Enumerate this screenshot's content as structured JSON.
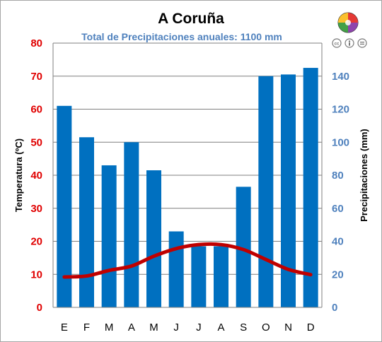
{
  "chart_data": {
    "type": "bar+line",
    "title": "A Coruña",
    "subtitle": "Total de Precipitaciones anuales: 1100 mm",
    "categories": [
      "E",
      "F",
      "M",
      "A",
      "M",
      "J",
      "J",
      "A",
      "S",
      "O",
      "N",
      "D"
    ],
    "series": [
      {
        "name": "Precipitaciones",
        "type": "bar",
        "axis": "right",
        "values": [
          122,
          103,
          86,
          100,
          83,
          46,
          37,
          37,
          73,
          140,
          141,
          145
        ]
      },
      {
        "name": "Temperatura",
        "type": "line",
        "axis": "left",
        "values": [
          9.2,
          9.5,
          11.2,
          12.5,
          15.5,
          17.8,
          19,
          19,
          17.5,
          14.5,
          11.5,
          9.9
        ]
      }
    ],
    "ylabel_left": "Temperatura (ºC)",
    "ylabel_right": "Precipitaciones (mm)",
    "ylim_left": [
      0,
      80
    ],
    "ylim_right": [
      0,
      160
    ],
    "yticks_left": [
      0,
      10,
      20,
      30,
      40,
      50,
      60,
      70,
      80
    ],
    "yticks_right": [
      0,
      20,
      40,
      60,
      80,
      100,
      120,
      140
    ],
    "grid": true,
    "colors": {
      "bars": "#0070c0",
      "line": "#c00000",
      "left_axis": "#e00000",
      "right_axis": "#4f81bd",
      "grid": "#7f7f7f"
    }
  },
  "badges": {
    "cc_icons": [
      "cc",
      "by",
      "nd"
    ]
  }
}
